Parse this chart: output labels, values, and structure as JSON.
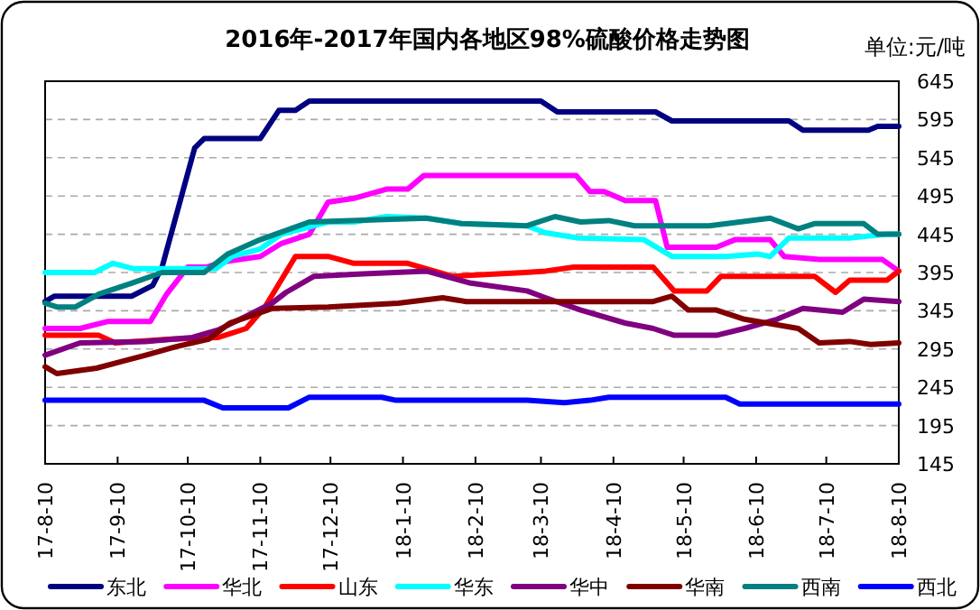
{
  "chart_data": {
    "type": "line",
    "title": "2016年-2017年国内各地区98%硫酸价格走势图",
    "annotations": [
      "单位:元/吨"
    ],
    "legend": "bottom",
    "grid": "y",
    "marker": "none",
    "line_style": "solid",
    "xlim": [
      "2017-08-10",
      "2018-08-10"
    ],
    "xticks": [
      {
        "value": "2017-08-10",
        "label": "17-8-10"
      },
      {
        "value": "2017-09-10",
        "label": "17-9-10"
      },
      {
        "value": "2017-10-10",
        "label": "17-10-10"
      },
      {
        "value": "2017-11-10",
        "label": "17-11-10"
      },
      {
        "value": "2017-12-10",
        "label": "17-12-10"
      },
      {
        "value": "2018-01-10",
        "label": "18-1-10"
      },
      {
        "value": "2018-02-10",
        "label": "18-2-10"
      },
      {
        "value": "2018-03-10",
        "label": "18-3-10"
      },
      {
        "value": "2018-04-10",
        "label": "18-4-10"
      },
      {
        "value": "2018-05-10",
        "label": "18-5-10"
      },
      {
        "value": "2018-06-10",
        "label": "18-6-10"
      },
      {
        "value": "2018-07-10",
        "label": "18-7-10"
      },
      {
        "value": "2018-08-10",
        "label": "18-8-10"
      }
    ],
    "ylim": [
      145,
      645
    ],
    "yticks": [
      145,
      195,
      245,
      295,
      345,
      395,
      445,
      495,
      545,
      595,
      645
    ],
    "series": [
      {
        "name": "东北",
        "color": "#000080",
        "x": [
          "2017-08-10",
          "2017-08-14",
          "2017-09-16",
          "2017-09-25",
          "2017-09-29",
          "2017-10-13",
          "2017-10-17",
          "2017-11-10",
          "2017-11-18",
          "2017-11-25",
          "2017-12-01",
          "2018-03-10",
          "2018-03-17",
          "2018-04-28",
          "2018-05-05",
          "2018-06-24",
          "2018-06-30",
          "2018-07-28",
          "2018-08-01",
          "2018-08-10"
        ],
        "values": [
          357,
          364,
          364,
          378,
          402,
          558,
          570,
          570,
          607,
          607,
          619,
          619,
          605,
          605,
          593,
          593,
          581,
          581,
          586,
          586
        ]
      },
      {
        "name": "华北",
        "color": "#ff00ff",
        "x": [
          "2017-08-10",
          "2017-08-25",
          "2017-09-06",
          "2017-09-16",
          "2017-09-24",
          "2017-10-01",
          "2017-10-10",
          "2017-10-18",
          "2017-10-25",
          "2017-11-10",
          "2017-11-19",
          "2017-12-01",
          "2017-12-09",
          "2017-12-20",
          "2018-01-03",
          "2018-01-12",
          "2018-01-19",
          "2018-03-20",
          "2018-03-25",
          "2018-03-31",
          "2018-04-06",
          "2018-04-15",
          "2018-04-28",
          "2018-05-03",
          "2018-05-24",
          "2018-06-01",
          "2018-06-16",
          "2018-06-22",
          "2018-07-07",
          "2018-08-03",
          "2018-08-10"
        ],
        "values": [
          322,
          322,
          331,
          331,
          331,
          367,
          402,
          402,
          409,
          416,
          433,
          445,
          487,
          492,
          504,
          504,
          522,
          522,
          522,
          501,
          501,
          489,
          489,
          428,
          428,
          438,
          438,
          416,
          412,
          412,
          397
        ]
      },
      {
        "name": "山东",
        "color": "#ff0000",
        "x": [
          "2017-08-10",
          "2017-09-02",
          "2017-09-09",
          "2017-10-03",
          "2017-10-23",
          "2017-11-04",
          "2017-11-12",
          "2017-11-25",
          "2017-12-09",
          "2017-12-20",
          "2018-01-12",
          "2018-01-31",
          "2018-03-03",
          "2018-03-12",
          "2018-03-24",
          "2018-04-27",
          "2018-05-06",
          "2018-05-20",
          "2018-05-26",
          "2018-07-05",
          "2018-07-14",
          "2018-07-20",
          "2018-08-05",
          "2018-08-10"
        ],
        "values": [
          313,
          313,
          303,
          308,
          310,
          322,
          350,
          416,
          416,
          407,
          407,
          390,
          395,
          397,
          402,
          402,
          371,
          371,
          390,
          390,
          369,
          385,
          385,
          397
        ]
      },
      {
        "name": "华东",
        "color": "#00ffff",
        "x": [
          "2017-08-10",
          "2017-08-31",
          "2017-09-08",
          "2017-09-17",
          "2017-10-05",
          "2017-10-22",
          "2017-10-29",
          "2017-11-10",
          "2017-11-19",
          "2017-12-09",
          "2017-12-20",
          "2018-01-03",
          "2018-01-20",
          "2018-02-04",
          "2018-03-04",
          "2018-03-12",
          "2018-03-26",
          "2018-04-23",
          "2018-05-05",
          "2018-05-28",
          "2018-06-11",
          "2018-06-16",
          "2018-06-24",
          "2018-07-20",
          "2018-08-05",
          "2018-08-10"
        ],
        "values": [
          395,
          395,
          407,
          400,
          400,
          400,
          416,
          426,
          445,
          461,
          461,
          468,
          466,
          459,
          456,
          447,
          440,
          438,
          416,
          416,
          419,
          416,
          440,
          440,
          445,
          445
        ]
      },
      {
        "name": "华中",
        "color": "#800080",
        "x": [
          "2017-08-10",
          "2017-08-25",
          "2017-09-22",
          "2017-10-12",
          "2017-10-23",
          "2017-11-04",
          "2017-11-15",
          "2017-11-21",
          "2017-12-03",
          "2017-12-24",
          "2018-01-20",
          "2018-02-08",
          "2018-03-04",
          "2018-03-12",
          "2018-03-27",
          "2018-04-15",
          "2018-04-27",
          "2018-05-06",
          "2018-05-24",
          "2018-06-05",
          "2018-06-19",
          "2018-06-30",
          "2018-07-17",
          "2018-07-26",
          "2018-08-10"
        ],
        "values": [
          287,
          303,
          305,
          310,
          320,
          338,
          355,
          369,
          390,
          393,
          397,
          381,
          371,
          362,
          346,
          329,
          322,
          313,
          313,
          322,
          334,
          348,
          343,
          360,
          357
        ]
      },
      {
        "name": "华南",
        "color": "#800000",
        "x": [
          "2017-08-10",
          "2017-08-15",
          "2017-09-01",
          "2017-09-12",
          "2017-09-22",
          "2017-10-05",
          "2017-10-19",
          "2017-10-28",
          "2017-11-04",
          "2017-11-15",
          "2017-12-09",
          "2018-01-08",
          "2018-01-27",
          "2018-02-06",
          "2018-03-04",
          "2018-04-27",
          "2018-05-05",
          "2018-05-12",
          "2018-05-24",
          "2018-06-05",
          "2018-06-28",
          "2018-07-07",
          "2018-07-20",
          "2018-07-29",
          "2018-08-10"
        ],
        "values": [
          272,
          263,
          270,
          279,
          287,
          298,
          308,
          329,
          336,
          348,
          350,
          355,
          362,
          357,
          357,
          357,
          364,
          346,
          346,
          334,
          322,
          303,
          305,
          301,
          303
        ]
      },
      {
        "name": "西南",
        "color": "#008080",
        "x": [
          "2017-08-10",
          "2017-08-15",
          "2017-08-23",
          "2017-09-02",
          "2017-09-16",
          "2017-09-29",
          "2017-10-17",
          "2017-10-27",
          "2017-11-10",
          "2017-12-01",
          "2018-01-20",
          "2018-02-04",
          "2018-03-04",
          "2018-03-16",
          "2018-03-27",
          "2018-04-08",
          "2018-04-19",
          "2018-05-21",
          "2018-06-16",
          "2018-06-28",
          "2018-07-05",
          "2018-07-26",
          "2018-08-01",
          "2018-08-10"
        ],
        "values": [
          355,
          350,
          350,
          367,
          381,
          395,
          395,
          419,
          438,
          461,
          466,
          459,
          456,
          468,
          461,
          463,
          456,
          456,
          466,
          452,
          459,
          459,
          445,
          445
        ]
      },
      {
        "name": "西北",
        "color": "#0000ff",
        "x": [
          "2017-08-10",
          "2017-10-17",
          "2017-10-25",
          "2017-11-22",
          "2017-12-01",
          "2018-01-01",
          "2018-01-07",
          "2018-03-04",
          "2018-03-20",
          "2018-03-31",
          "2018-04-08",
          "2018-05-28",
          "2018-06-03",
          "2018-08-10"
        ],
        "values": [
          228,
          228,
          218,
          218,
          232,
          232,
          228,
          228,
          225,
          228,
          232,
          232,
          223,
          223
        ]
      }
    ]
  }
}
